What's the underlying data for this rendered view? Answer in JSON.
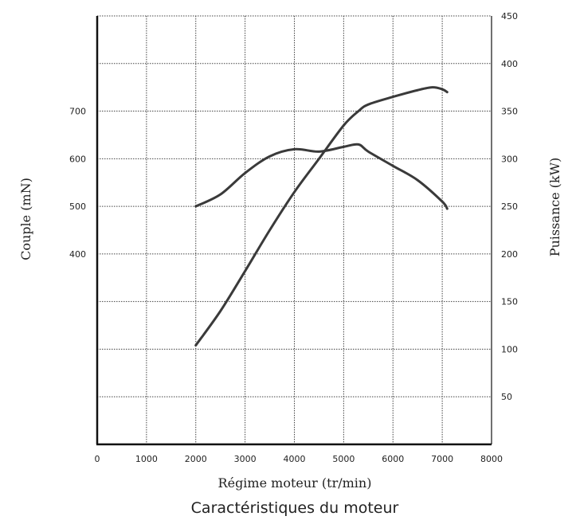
{
  "caption": "Caractéristiques du moteur",
  "chart_data": {
    "type": "line",
    "xlabel": "Régime moteur (tr/min)",
    "ylabel_left": "Couple (mN)",
    "ylabel_right": "Puissance (kW)",
    "xlim": [
      0,
      8000
    ],
    "x_ticks": [
      0,
      1000,
      2000,
      3000,
      4000,
      5000,
      6000,
      7000,
      8000
    ],
    "ylim_left": [
      0,
      900
    ],
    "y_ticks_left": [
      400,
      500,
      600,
      700
    ],
    "ylim_right": [
      0,
      450
    ],
    "y_ticks_right": [
      50,
      100,
      150,
      200,
      250,
      300,
      350,
      400,
      450
    ],
    "grid": true,
    "series": [
      {
        "axis": "left",
        "x": [
          2000,
          2500,
          3000,
          3500,
          4000,
          4500,
          5000,
          5300,
          5500,
          6000,
          6500,
          7000,
          7100
        ],
        "y": [
          500,
          525,
          570,
          605,
          620,
          615,
          625,
          630,
          615,
          585,
          555,
          510,
          495
        ]
      },
      {
        "axis": "right",
        "x": [
          2000,
          2500,
          3000,
          3500,
          4000,
          4500,
          5000,
          5300,
          5500,
          6000,
          6500,
          6800,
          7000,
          7100
        ],
        "y": [
          104,
          140,
          182,
          225,
          265,
          300,
          335,
          350,
          357,
          365,
          372,
          375,
          373,
          370
        ]
      }
    ]
  }
}
